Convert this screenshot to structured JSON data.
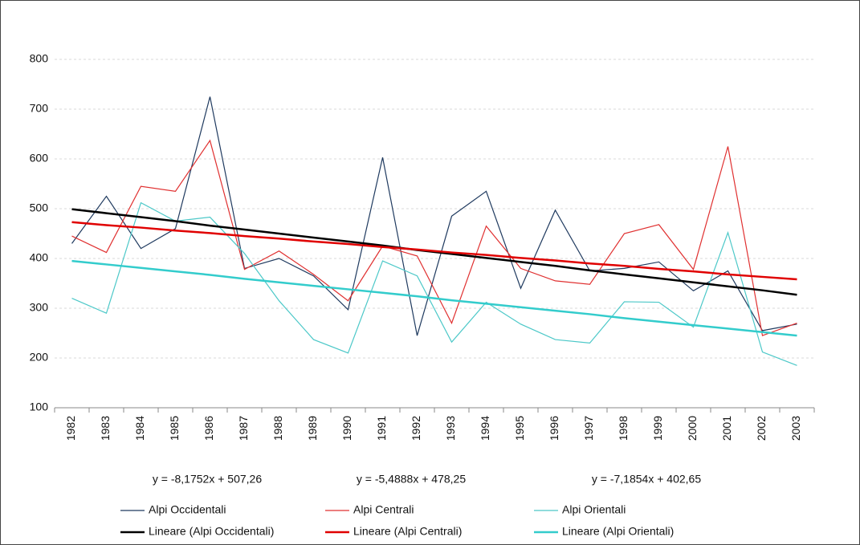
{
  "chart_data": {
    "type": "line",
    "categories": [
      "1982",
      "1983",
      "1984",
      "1985",
      "1986",
      "1987",
      "1988",
      "1989",
      "1990",
      "1991",
      "1992",
      "1993",
      "1994",
      "1995",
      "1996",
      "1997",
      "1998",
      "1999",
      "2000",
      "2001",
      "2002",
      "2003"
    ],
    "series": [
      {
        "name": "Alpi Occidentali",
        "color": "#1f3a5f",
        "line_width": 1.2,
        "values": [
          430,
          525,
          420,
          460,
          725,
          380,
          400,
          365,
          297,
          603,
          245,
          485,
          535,
          340,
          497,
          375,
          380,
          393,
          335,
          375,
          255,
          268
        ]
      },
      {
        "name": "Alpi Centrali",
        "color": "#e03030",
        "line_width": 1.2,
        "values": [
          445,
          412,
          545,
          535,
          637,
          378,
          415,
          368,
          315,
          425,
          405,
          270,
          465,
          380,
          355,
          348,
          450,
          468,
          378,
          625,
          245,
          270
        ]
      },
      {
        "name": "Alpi Orientali",
        "color": "#4cc8c8",
        "line_width": 1.2,
        "values": [
          320,
          290,
          512,
          475,
          483,
          410,
          315,
          237,
          210,
          395,
          365,
          232,
          312,
          268,
          237,
          230,
          313,
          312,
          262,
          452,
          212,
          185
        ]
      },
      {
        "name": "Lineare (Alpi Occidentali)",
        "color": "#000000",
        "line_width": 2.5,
        "values": [
          499,
          491,
          483,
          475,
          466,
          458,
          450,
          442,
          434,
          426,
          417,
          409,
          401,
          393,
          385,
          376,
          368,
          360,
          352,
          344,
          336,
          327
        ]
      },
      {
        "name": "Lineare (Alpi Centrali)",
        "color": "#e00000",
        "line_width": 2.5,
        "values": [
          473,
          467,
          462,
          456,
          451,
          445,
          440,
          434,
          429,
          423,
          418,
          412,
          407,
          401,
          396,
          390,
          385,
          379,
          374,
          368,
          363,
          358
        ]
      },
      {
        "name": "Lineare (Alpi Orientali)",
        "color": "#33cccc",
        "line_width": 2.5,
        "values": [
          395,
          388,
          381,
          374,
          367,
          359,
          352,
          345,
          338,
          331,
          324,
          316,
          309,
          302,
          295,
          288,
          280,
          273,
          266,
          259,
          252,
          245
        ]
      }
    ],
    "annotations": [
      "y = -8,1752x + 507,26",
      "y = -5,4888x + 478,25",
      "y = -7,1854x + 402,65"
    ],
    "ylim": [
      100,
      800
    ],
    "yticks": [
      100,
      200,
      300,
      400,
      500,
      600,
      700,
      800
    ],
    "grid": true
  }
}
